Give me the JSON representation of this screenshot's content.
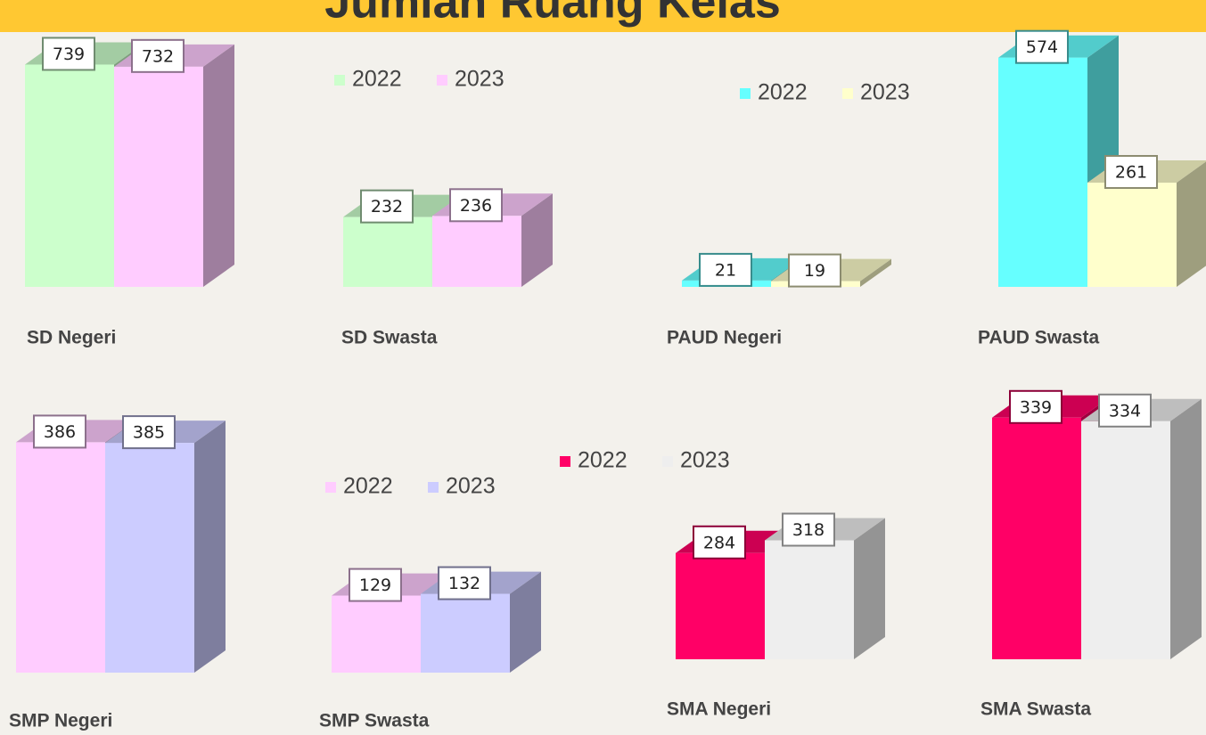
{
  "title": "Jumlah Ruang Kelas",
  "chart_data": [
    {
      "type": "bar",
      "title": "SD Negeri",
      "ylim": [
        0,
        770
      ],
      "series": [
        {
          "color": "#ccffcc",
          "values": [
            739
          ]
        },
        {
          "color": "#ffccff",
          "values": [
            732
          ]
        }
      ]
    },
    {
      "type": "bar",
      "title": "SD Swasta",
      "ylim": [
        0,
        770
      ],
      "legend": true,
      "series": [
        {
          "name": "2022",
          "color": "#ccffcc",
          "values": [
            232
          ]
        },
        {
          "name": "2023",
          "color": "#ffccff",
          "values": [
            236
          ]
        }
      ]
    },
    {
      "type": "bar",
      "title": "PAUD Negeri",
      "ylim": [
        0,
        770
      ],
      "legend": true,
      "series": [
        {
          "name": "2022",
          "color": "#66ffff",
          "values": [
            21
          ]
        },
        {
          "name": "2023",
          "color": "#ffffcc",
          "values": [
            19
          ]
        }
      ]
    },
    {
      "type": "bar",
      "title": "PAUD Swasta",
      "ylim": [
        0,
        580
      ],
      "series": [
        {
          "color": "#66ffff",
          "values": [
            574
          ]
        },
        {
          "color": "#ffffcc",
          "values": [
            261
          ]
        }
      ]
    },
    {
      "type": "bar",
      "title": "SMP Negeri",
      "ylim": [
        0,
        418
      ],
      "series": [
        {
          "color": "#ffccff",
          "values": [
            386
          ]
        },
        {
          "color": "#ccccff",
          "values": [
            385
          ]
        }
      ]
    },
    {
      "type": "bar",
      "title": "SMP Swasta",
      "ylim": [
        0,
        418
      ],
      "legend": true,
      "series": [
        {
          "name": "2022",
          "color": "#ffccff",
          "values": [
            129
          ]
        },
        {
          "name": "2023",
          "color": "#ccccff",
          "values": [
            132
          ]
        }
      ]
    },
    {
      "type": "bar",
      "title": "SMA Negeri",
      "ylim": [
        0,
        667
      ],
      "legend": true,
      "series": [
        {
          "name": "2022",
          "color": "#ff0066",
          "values": [
            284
          ]
        },
        {
          "name": "2023",
          "color": "#eeeeee",
          "values": [
            318
          ]
        }
      ]
    },
    {
      "type": "bar",
      "title": "SMA Swasta",
      "ylim": [
        0,
        350
      ],
      "series": [
        {
          "color": "#ff0066",
          "values": [
            339
          ]
        },
        {
          "color": "#eeeeee",
          "values": [
            334
          ]
        }
      ]
    }
  ]
}
